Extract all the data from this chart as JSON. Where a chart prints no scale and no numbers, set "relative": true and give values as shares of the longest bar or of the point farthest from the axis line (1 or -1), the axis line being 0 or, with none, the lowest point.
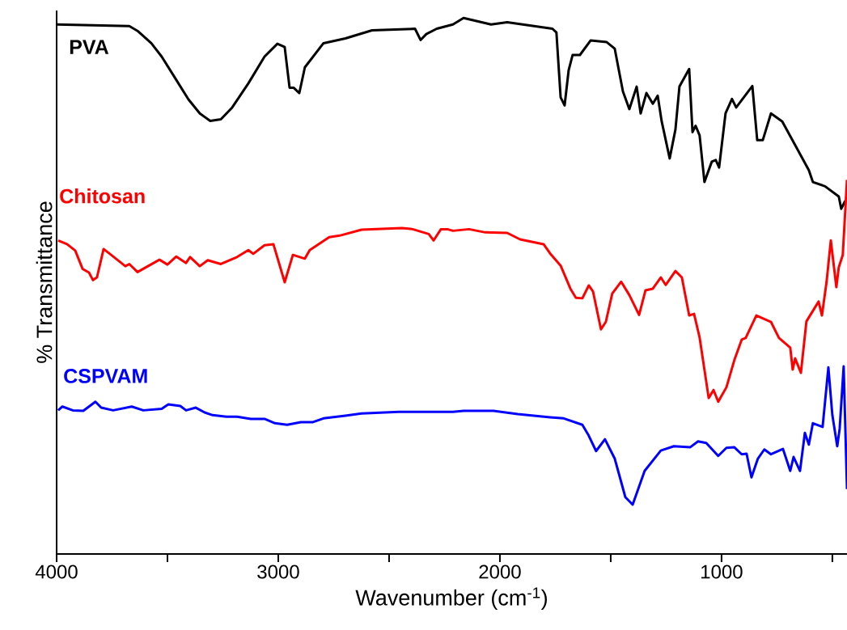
{
  "chart_data": {
    "type": "line",
    "xlabel": "Wavenumber (cm$^{-1}$)",
    "ylabel": "% Transmittance",
    "relative": true,
    "xlim": [
      4000,
      434
    ],
    "xticks": [
      4000,
      {
        "value": 3500,
        "label": null
      },
      3000,
      {
        "value": 2500,
        "label": null
      },
      2000,
      {
        "value": 1500,
        "label": null
      },
      1000,
      {
        "value": 500,
        "label": null
      }
    ],
    "series": [
      {
        "name": "PVA",
        "color": "#000000",
        "x": [
          4000,
          3672,
          3635,
          3573,
          3526,
          3464,
          3405,
          3354,
          3307,
          3259,
          3208,
          3135,
          3062,
          3004,
          2971,
          2949,
          2931,
          2905,
          2880,
          2796,
          2697,
          2577,
          2383,
          2358,
          2332,
          2285,
          2212,
          2164,
          2040,
          1967,
          1763,
          1745,
          1726,
          1708,
          1690,
          1672,
          1639,
          1591,
          1518,
          1482,
          1445,
          1416,
          1383,
          1365,
          1339,
          1310,
          1288,
          1270,
          1234,
          1208,
          1190,
          1146,
          1131,
          1117,
          1099,
          1077,
          1044,
          1026,
          1011,
          982,
          953,
          934,
          872,
          861,
          839,
          814,
          777,
          726,
          606,
          588,
          533,
          471,
          460,
          442
        ],
        "values": [
          0.988,
          0.985,
          0.976,
          0.953,
          0.928,
          0.887,
          0.848,
          0.822,
          0.808,
          0.811,
          0.833,
          0.878,
          0.928,
          0.952,
          0.946,
          0.87,
          0.87,
          0.86,
          0.908,
          0.953,
          0.962,
          0.977,
          0.98,
          0.959,
          0.97,
          0.98,
          0.988,
          1.0,
          0.988,
          0.992,
          0.98,
          0.973,
          0.852,
          0.837,
          0.902,
          0.931,
          0.931,
          0.958,
          0.955,
          0.943,
          0.863,
          0.83,
          0.872,
          0.822,
          0.86,
          0.84,
          0.855,
          0.807,
          0.738,
          0.792,
          0.872,
          0.905,
          0.787,
          0.799,
          0.781,
          0.694,
          0.732,
          0.735,
          0.721,
          0.822,
          0.849,
          0.833,
          0.867,
          0.873,
          0.772,
          0.772,
          0.822,
          0.807,
          0.716,
          0.694,
          0.686,
          0.667,
          0.644,
          0.659
        ]
      },
      {
        "name": "Chitosan",
        "color": "#ff0000",
        "x": [
          3993,
          3953,
          3916,
          3883,
          3854,
          3836,
          3818,
          3788,
          3745,
          3690,
          3672,
          3635,
          3588,
          3536,
          3500,
          3460,
          3416,
          3398,
          3354,
          3318,
          3259,
          3186,
          3135,
          3113,
          3062,
          3022,
          2971,
          2934,
          2880,
          2858,
          2770,
          2723,
          2624,
          2442,
          2394,
          2321,
          2299,
          2266,
          2237,
          2212,
          2139,
          2066,
          1967,
          1909,
          1803,
          1774,
          1726,
          1682,
          1657,
          1628,
          1599,
          1580,
          1544,
          1522,
          1493,
          1453,
          1416,
          1372,
          1343,
          1310,
          1274,
          1252,
          1208,
          1179,
          1146,
          1124,
          1099,
          1058,
          1036,
          1015,
          978,
          942,
          909,
          891,
          843,
          777,
          741,
          690,
          679,
          668,
          642,
          617,
          562,
          547,
          526,
          507,
          482,
          471,
          453,
          434
        ],
        "values": [
          0.585,
          0.578,
          0.566,
          0.532,
          0.525,
          0.511,
          0.516,
          0.569,
          0.555,
          0.537,
          0.541,
          0.526,
          0.537,
          0.549,
          0.54,
          0.555,
          0.543,
          0.554,
          0.537,
          0.548,
          0.541,
          0.554,
          0.567,
          0.56,
          0.576,
          0.578,
          0.507,
          0.558,
          0.551,
          0.567,
          0.591,
          0.594,
          0.605,
          0.608,
          0.606,
          0.597,
          0.585,
          0.606,
          0.606,
          0.603,
          0.606,
          0.6,
          0.599,
          0.587,
          0.578,
          0.561,
          0.538,
          0.495,
          0.478,
          0.477,
          0.501,
          0.49,
          0.419,
          0.433,
          0.486,
          0.508,
          0.483,
          0.446,
          0.492,
          0.495,
          0.516,
          0.502,
          0.528,
          0.516,
          0.445,
          0.448,
          0.404,
          0.291,
          0.306,
          0.284,
          0.311,
          0.362,
          0.4,
          0.403,
          0.445,
          0.433,
          0.403,
          0.385,
          0.344,
          0.365,
          0.338,
          0.434,
          0.471,
          0.445,
          0.508,
          0.585,
          0.498,
          0.535,
          0.558,
          0.698
        ]
      },
      {
        "name": "CSPVAM",
        "color": "#0000ff",
        "x": [
          3993,
          3974,
          3927,
          3880,
          3854,
          3825,
          3799,
          3745,
          3661,
          3609,
          3526,
          3496,
          3442,
          3416,
          3372,
          3332,
          3296,
          3234,
          3186,
          3124,
          3062,
          3015,
          2960,
          2898,
          2843,
          2796,
          2697,
          2624,
          2456,
          2212,
          2164,
          2029,
          1920,
          1774,
          1712,
          1628,
          1602,
          1566,
          1526,
          1482,
          1434,
          1401,
          1347,
          1274,
          1215,
          1142,
          1106,
          1069,
          1015,
          978,
          942,
          909,
          887,
          865,
          836,
          807,
          777,
          723,
          690,
          675,
          646,
          624,
          606,
          588,
          544,
          518,
          500,
          478,
          467,
          449,
          434
        ],
        "values": [
          0.268,
          0.275,
          0.268,
          0.267,
          0.275,
          0.284,
          0.273,
          0.268,
          0.275,
          0.268,
          0.271,
          0.279,
          0.276,
          0.268,
          0.273,
          0.264,
          0.259,
          0.256,
          0.256,
          0.252,
          0.252,
          0.244,
          0.241,
          0.246,
          0.246,
          0.253,
          0.258,
          0.262,
          0.265,
          0.265,
          0.267,
          0.267,
          0.261,
          0.255,
          0.253,
          0.241,
          0.223,
          0.192,
          0.214,
          0.178,
          0.106,
          0.092,
          0.155,
          0.193,
          0.201,
          0.199,
          0.21,
          0.207,
          0.183,
          0.198,
          0.199,
          0.186,
          0.187,
          0.143,
          0.178,
          0.195,
          0.186,
          0.196,
          0.155,
          0.181,
          0.155,
          0.226,
          0.204,
          0.244,
          0.237,
          0.348,
          0.259,
          0.201,
          0.234,
          0.35,
          0.121
        ]
      }
    ]
  }
}
